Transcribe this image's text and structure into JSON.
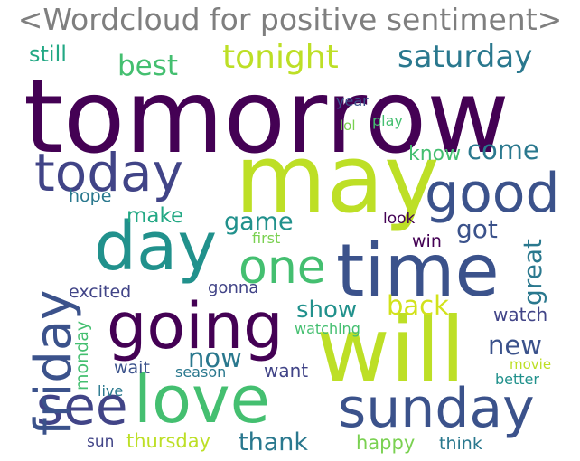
{
  "title": "<Wordcloud for positive sentiment>",
  "palette": {
    "dark_purple": "#440154",
    "indigo": "#3b528b",
    "slate": "#414487",
    "teal": "#2a788e",
    "sea": "#21918c",
    "green": "#22a884",
    "mint": "#44bf70",
    "lime": "#7ad151",
    "yellow_green": "#bddf26",
    "yellow": "#d2e21b"
  },
  "words": {
    "tomorrow": "tomorrow",
    "may": "may",
    "will": "will",
    "time": "time",
    "day": "day",
    "love": "love",
    "going": "going",
    "today": "today",
    "good": "good",
    "sunday": "sunday",
    "see": "see",
    "friday": "friday",
    "one": "one",
    "tonight": "tonight",
    "saturday": "saturday",
    "best": "best",
    "still": "still",
    "game": "game",
    "make": "make",
    "come": "come",
    "got": "got",
    "know": "know",
    "great": "great",
    "new": "new",
    "now": "now",
    "show": "show",
    "back": "back",
    "hope": "hope",
    "win": "win",
    "look": "look",
    "first": "first",
    "excited": "excited",
    "gonna": "gonna",
    "watch": "watch",
    "watching": "watching",
    "monday": "monday",
    "wait": "wait",
    "season": "season",
    "want": "want",
    "movie": "movie",
    "better": "better",
    "live": "live",
    "sun": "sun",
    "thursday": "thursday",
    "thank": "thank",
    "happy": "happy",
    "think": "think",
    "year": "year",
    "lol": "lol",
    "play": "play"
  }
}
